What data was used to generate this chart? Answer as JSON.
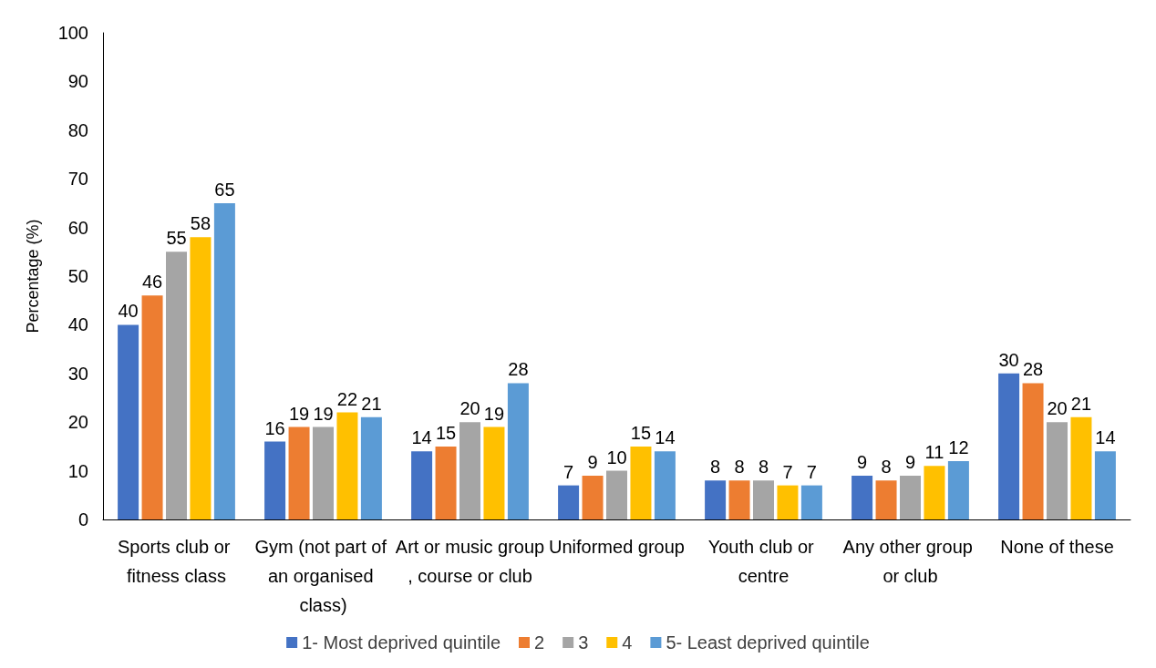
{
  "chart_data": {
    "type": "bar",
    "ylabel": "Percentage (%)",
    "categories": [
      "Sports club or fitness class",
      "Gym (not part of an organised class)",
      "Art or music group, course or club",
      "Uniformed group",
      "Youth club or centre",
      "Any other group or club",
      "None of these"
    ],
    "series": [
      {
        "name": "1- Most deprived quintile",
        "color": "#4472c4",
        "values": [
          40,
          16,
          14,
          7,
          8,
          9,
          30
        ]
      },
      {
        "name": "2",
        "color": "#ed7d31",
        "values": [
          46,
          19,
          15,
          9,
          8,
          8,
          28
        ]
      },
      {
        "name": "3",
        "color": "#a5a5a5",
        "values": [
          55,
          19,
          20,
          10,
          8,
          9,
          20
        ]
      },
      {
        "name": "4",
        "color": "#ffc000",
        "values": [
          58,
          22,
          19,
          15,
          7,
          11,
          21
        ]
      },
      {
        "name": "5- Least deprived quintile",
        "color": "#5b9bd5",
        "values": [
          65,
          21,
          28,
          14,
          7,
          12,
          14
        ]
      }
    ],
    "ylim": [
      0,
      100
    ],
    "yticks": [
      0,
      10,
      20,
      30,
      40,
      50,
      60,
      70,
      80,
      90,
      100
    ],
    "grid": false,
    "legend": "bottom",
    "data_labels": true
  }
}
